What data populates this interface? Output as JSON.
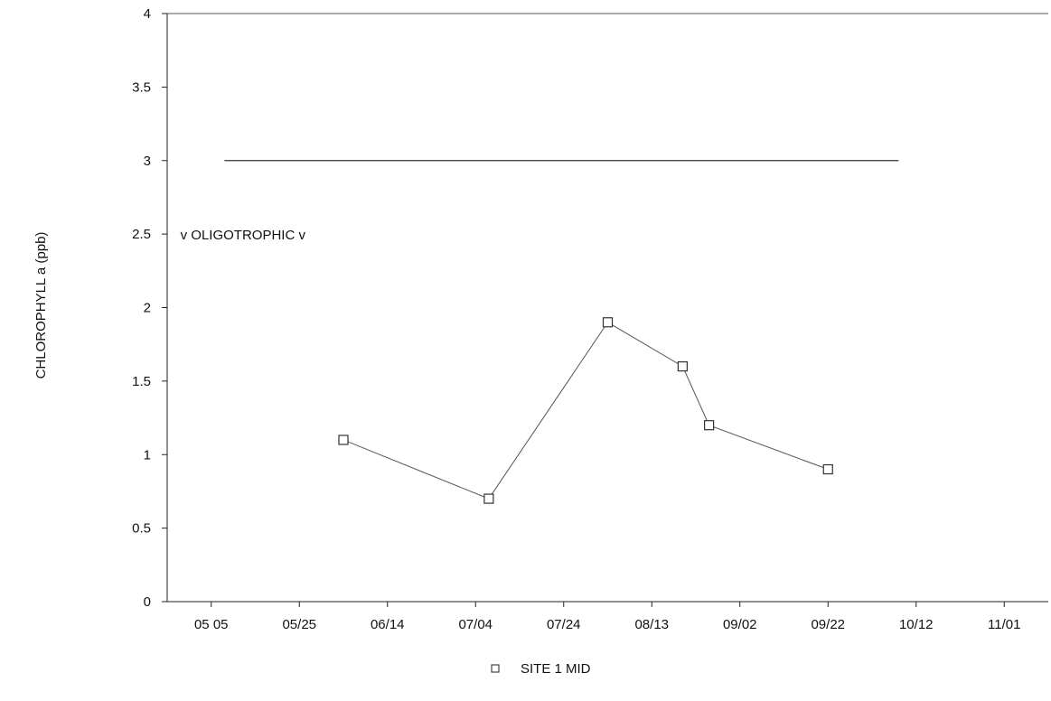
{
  "chart_data": {
    "type": "line",
    "title": "",
    "xlabel": "",
    "ylabel": "CHLOROPHYLL a (ppb)",
    "ylim": [
      0,
      4
    ],
    "y_ticks": [
      "0",
      "0.5",
      "1",
      "1.5",
      "2",
      "2.5",
      "3",
      "3.5",
      "4"
    ],
    "x_tick_labels": [
      "05 05",
      "05/25",
      "06/14",
      "07/04",
      "07/24",
      "08/13",
      "09/02",
      "09/22",
      "10/12",
      "11/01"
    ],
    "x_tick_dates": [
      "05/05",
      "05/25",
      "06/14",
      "07/04",
      "07/24",
      "08/13",
      "09/02",
      "09/22",
      "10/12",
      "11/01"
    ],
    "xlim": [
      "04/25",
      "11/11"
    ],
    "grid": false,
    "legend_position": "bottom-center",
    "series": [
      {
        "name": "SITE 1 MID",
        "marker": "square",
        "x": [
          "06/04",
          "07/07",
          "08/03",
          "08/20",
          "08/26",
          "09/22"
        ],
        "y": [
          1.1,
          0.7,
          1.9,
          1.6,
          1.2,
          0.9
        ]
      }
    ],
    "reference_lines": [
      {
        "y": 3,
        "x_start": "05/08",
        "x_end": "10/08"
      }
    ],
    "annotations": [
      {
        "text": "v OLIGOTROPHIC v",
        "x": "04/28",
        "y": 2.5
      }
    ]
  }
}
